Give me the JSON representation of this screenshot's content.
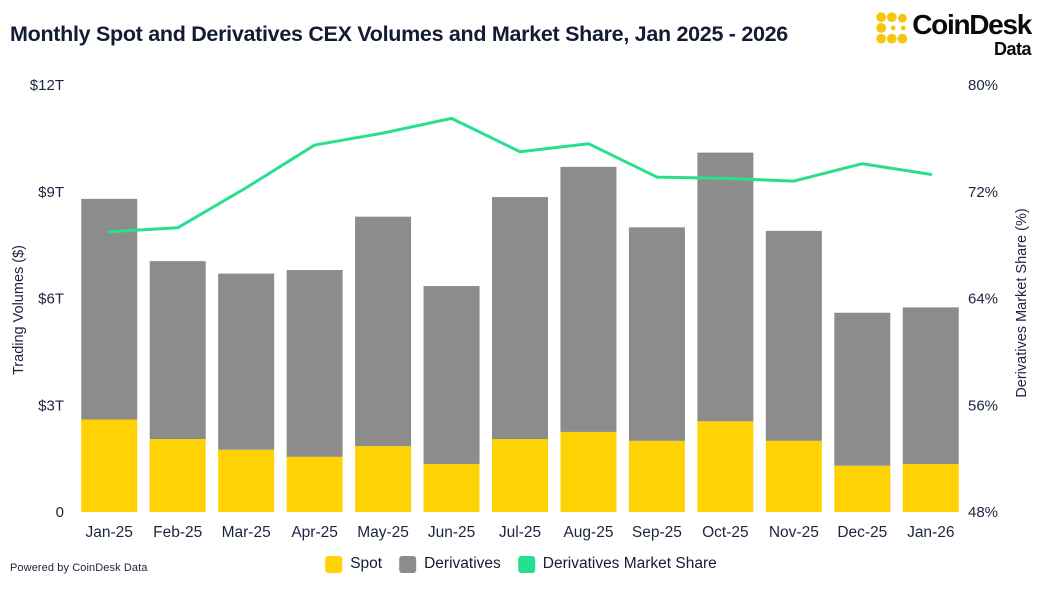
{
  "header": {
    "title": "Monthly Spot and Derivatives CEX Volumes and Market Share, Jan 2025 - 2026",
    "logo": {
      "brand": "CoinDesk",
      "sub": "Data",
      "icon_color": "#F6C50D"
    }
  },
  "footer": {
    "powered_by": "Powered by CoinDesk Data"
  },
  "legend": {
    "items": [
      {
        "label": "Spot",
        "color": "#FFD303"
      },
      {
        "label": "Derivatives",
        "color": "#8C8C8C"
      },
      {
        "label": "Derivatives Market Share",
        "color": "#27E08D"
      }
    ]
  },
  "chart_data": {
    "type": "bar",
    "subtype": "stacked-bars-with-line",
    "title": "Monthly Spot and Derivatives CEX Volumes and Market Share, Jan 2025 - 2026",
    "categories": [
      "Jan-25",
      "Feb-25",
      "Mar-25",
      "Apr-25",
      "May-25",
      "Jun-25",
      "Jul-25",
      "Aug-25",
      "Sep-25",
      "Oct-25",
      "Nov-25",
      "Dec-25",
      "Jan-26"
    ],
    "series": [
      {
        "name": "Spot",
        "type": "bar",
        "stack": "volume",
        "axis": "left",
        "unit": "trillion USD",
        "color": "#FFD303",
        "values": [
          2.6,
          2.05,
          1.75,
          1.55,
          1.85,
          1.35,
          2.05,
          2.25,
          2.0,
          2.55,
          2.0,
          1.3,
          1.35
        ]
      },
      {
        "name": "Derivatives",
        "type": "bar",
        "stack": "volume",
        "axis": "left",
        "unit": "trillion USD",
        "color": "#8C8C8C",
        "values": [
          6.2,
          5.0,
          4.95,
          5.25,
          6.45,
          5.0,
          6.8,
          7.45,
          6.0,
          7.55,
          5.9,
          4.3,
          4.4
        ]
      },
      {
        "name": "Derivatives Market Share",
        "type": "line",
        "axis": "right",
        "unit": "%",
        "color": "#27E08D",
        "values": [
          69.0,
          69.3,
          72.3,
          75.5,
          76.4,
          77.5,
          75.0,
          75.6,
          73.1,
          73.0,
          72.8,
          74.1,
          73.3
        ]
      }
    ],
    "left_axis": {
      "label": "Trading Volumes ($)",
      "tick_labels": [
        "$12T",
        "$9T",
        "$6T",
        "$3T",
        "0"
      ],
      "tick_values": [
        12,
        9,
        6,
        3,
        0
      ],
      "min": 0,
      "max": 12
    },
    "right_axis": {
      "label": "Derivatives Market Share (%)",
      "tick_labels": [
        "80%",
        "72%",
        "64%",
        "56%",
        "48%"
      ],
      "tick_values": [
        80,
        72,
        64,
        56,
        48
      ],
      "min": 48,
      "max": 80
    },
    "grid": false,
    "legend_position": "bottom",
    "colors": {
      "background": "#ffffff",
      "title_text": "#131c33",
      "axis_text": "#1c2540"
    }
  }
}
